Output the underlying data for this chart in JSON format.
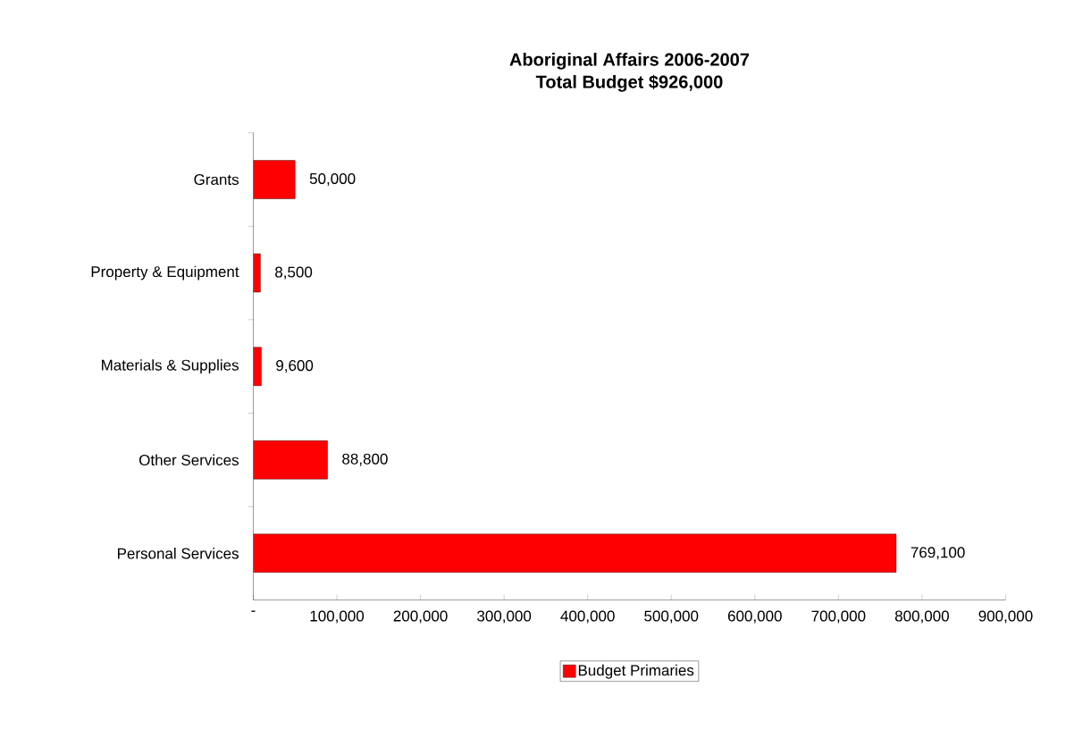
{
  "chart_data": {
    "type": "bar",
    "orientation": "horizontal",
    "title": "Aboriginal Affairs 2006-2007",
    "subtitle": "Total Budget $926,000",
    "categories": [
      "Grants",
      "Property & Equipment",
      "Materials & Supplies",
      "Other Services",
      "Personal Services"
    ],
    "series": [
      {
        "name": "Budget Primaries",
        "color": "#ff0000",
        "values": [
          50000,
          8500,
          9600,
          88800,
          769100
        ],
        "value_labels": [
          "50,000",
          "8,500",
          "9,600",
          "88,800",
          "769,100"
        ]
      }
    ],
    "xlim": [
      0,
      900000
    ],
    "xticks": [
      {
        "value": 0,
        "label": "-"
      },
      {
        "value": 100000,
        "label": "100,000"
      },
      {
        "value": 200000,
        "label": "200,000"
      },
      {
        "value": 300000,
        "label": "300,000"
      },
      {
        "value": 400000,
        "label": "400,000"
      },
      {
        "value": 500000,
        "label": "500,000"
      },
      {
        "value": 600000,
        "label": "600,000"
      },
      {
        "value": 700000,
        "label": "700,000"
      },
      {
        "value": 800000,
        "label": "800,000"
      },
      {
        "value": 900000,
        "label": "900,000"
      }
    ],
    "grid": false,
    "legend": "bottom"
  }
}
